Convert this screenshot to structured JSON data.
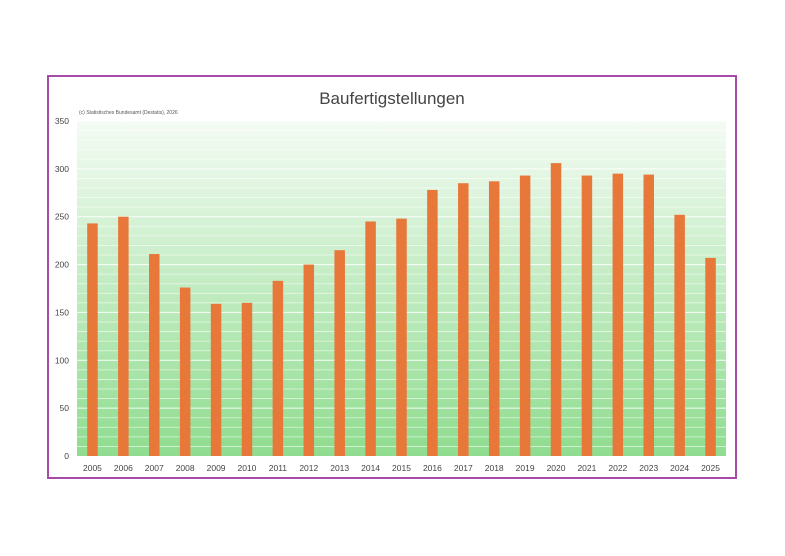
{
  "chart_data": {
    "type": "bar",
    "title": "Baufertigstellungen",
    "source_note": "(c) Statistisches Bundesamt (Destatis), 2026",
    "categories": [
      "2005",
      "2006",
      "2007",
      "2008",
      "2009",
      "2010",
      "2011",
      "2012",
      "2013",
      "2014",
      "2015",
      "2016",
      "2017",
      "2018",
      "2019",
      "2020",
      "2021",
      "2022",
      "2023",
      "2024",
      "2025"
    ],
    "values": [
      243,
      250,
      211,
      176,
      159,
      160,
      183,
      200,
      215,
      245,
      248,
      278,
      285,
      287,
      293,
      306,
      293,
      295,
      294,
      252,
      207
    ],
    "ylim": [
      0,
      350
    ],
    "yticks": [
      0,
      50,
      100,
      150,
      200,
      250,
      300,
      350
    ],
    "grid": true,
    "colors": {
      "bar": "#e8773a",
      "frame": "#a64ca6",
      "plot_gradient_top": "#f4fbf4",
      "plot_gradient_bottom": "#8fdc8f",
      "gridline": "#ffffff"
    }
  }
}
